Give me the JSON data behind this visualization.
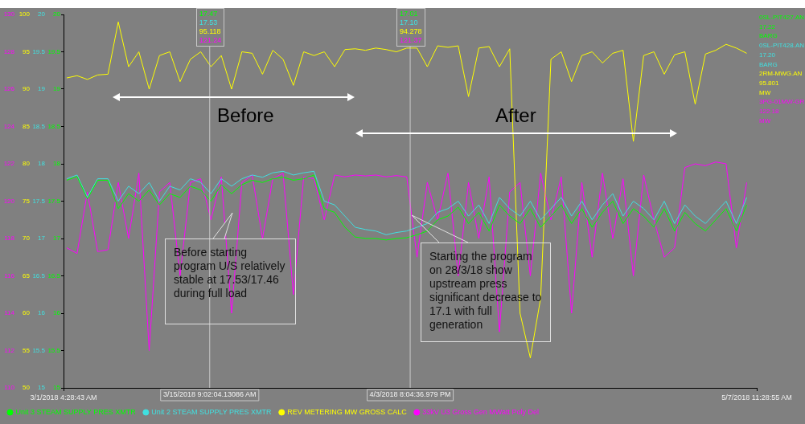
{
  "chart_data": {
    "type": "line",
    "x": [
      "2018-03-01T12:00",
      "2018-03-02T12:00",
      "2018-03-03T12:00",
      "2018-03-04T12:00",
      "2018-03-05T12:00",
      "2018-03-06T12:00",
      "2018-03-07T12:00",
      "2018-03-08T12:00",
      "2018-03-09T12:00",
      "2018-03-10T12:00",
      "2018-03-11T12:00",
      "2018-03-12T12:00",
      "2018-03-13T12:00",
      "2018-03-14T12:00",
      "2018-03-15T12:00",
      "2018-03-16T12:00",
      "2018-03-17T12:00",
      "2018-03-18T12:00",
      "2018-03-19T12:00",
      "2018-03-20T12:00",
      "2018-03-21T12:00",
      "2018-03-22T12:00",
      "2018-03-23T12:00",
      "2018-03-24T12:00",
      "2018-03-25T12:00",
      "2018-03-26T12:00",
      "2018-03-27T12:00",
      "2018-03-28T12:00",
      "2018-03-29T12:00",
      "2018-03-30T12:00",
      "2018-03-31T12:00",
      "2018-04-01T12:00",
      "2018-04-02T12:00",
      "2018-04-03T12:00",
      "2018-04-04T12:00",
      "2018-04-05T12:00",
      "2018-04-06T12:00",
      "2018-04-07T12:00",
      "2018-04-08T12:00",
      "2018-04-09T12:00",
      "2018-04-10T12:00",
      "2018-04-11T12:00",
      "2018-04-12T12:00",
      "2018-04-13T12:00",
      "2018-04-14T12:00",
      "2018-04-15T12:00",
      "2018-04-16T12:00",
      "2018-04-17T12:00",
      "2018-04-18T12:00",
      "2018-04-19T12:00",
      "2018-04-20T12:00",
      "2018-04-21T12:00",
      "2018-04-22T12:00",
      "2018-04-23T12:00",
      "2018-04-24T12:00",
      "2018-04-25T12:00",
      "2018-04-26T12:00",
      "2018-04-27T12:00",
      "2018-04-28T12:00",
      "2018-04-29T12:00",
      "2018-04-30T12:00",
      "2018-05-01T12:00",
      "2018-05-02T12:00",
      "2018-05-03T12:00",
      "2018-05-04T12:00",
      "2018-05-05T12:00",
      "2018-05-06T12:00"
    ],
    "series": [
      {
        "name": "Unit 3 STEAM SUPPLY PRES XMTR",
        "color": "#00ff00",
        "axis": "y3",
        "values": [
          17.78,
          17.83,
          17.53,
          17.78,
          17.78,
          17.4,
          17.6,
          17.5,
          17.65,
          17.45,
          17.6,
          17.55,
          17.7,
          17.65,
          17.5,
          17.72,
          17.6,
          17.72,
          17.78,
          17.75,
          17.8,
          17.82,
          17.78,
          17.8,
          17.85,
          17.4,
          17.35,
          17.15,
          17.02,
          17.0,
          17.0,
          16.98,
          17.0,
          17.01,
          17.05,
          17.1,
          17.25,
          17.3,
          17.42,
          17.2,
          17.35,
          17.1,
          17.45,
          17.3,
          17.2,
          17.4,
          17.15,
          17.3,
          17.45,
          17.2,
          17.4,
          17.15,
          17.35,
          17.5,
          17.2,
          17.4,
          17.3,
          17.15,
          17.4,
          17.1,
          17.35,
          17.2,
          17.1,
          17.25,
          17.4,
          17.1,
          17.45
        ]
      },
      {
        "name": "Unit 2 STEAM SUPPLY PRES XMTR",
        "color": "#40e0e0",
        "axis": "y3",
        "values": [
          17.8,
          17.85,
          17.55,
          17.8,
          17.8,
          17.5,
          17.7,
          17.6,
          17.75,
          17.5,
          17.7,
          17.65,
          17.8,
          17.75,
          17.6,
          17.8,
          17.7,
          17.8,
          17.85,
          17.82,
          17.88,
          17.9,
          17.85,
          17.88,
          17.9,
          17.5,
          17.45,
          17.3,
          17.15,
          17.12,
          17.1,
          17.05,
          17.08,
          17.1,
          17.15,
          17.2,
          17.35,
          17.4,
          17.5,
          17.3,
          17.45,
          17.2,
          17.55,
          17.4,
          17.3,
          17.5,
          17.25,
          17.4,
          17.55,
          17.3,
          17.5,
          17.25,
          17.45,
          17.6,
          17.3,
          17.5,
          17.4,
          17.25,
          17.5,
          17.2,
          17.45,
          17.3,
          17.2,
          17.35,
          17.5,
          17.2,
          17.55
        ]
      },
      {
        "name": "REV METERING MW GROSS CALC",
        "color": "#ffff00",
        "axis": "y2",
        "values": [
          91.5,
          91.8,
          91.3,
          91.9,
          92.0,
          99,
          93,
          95,
          90,
          94.5,
          95,
          91,
          94,
          95,
          93,
          94.5,
          90,
          95,
          94.8,
          92,
          95.2,
          94,
          90.5,
          95,
          94.5,
          95,
          93,
          95.3,
          95.4,
          95.2,
          95.5,
          95.3,
          95.0,
          95.5,
          95.5,
          93,
          95.8,
          95.6,
          95.8,
          89,
          95.5,
          95.7,
          93,
          95.4,
          60,
          54,
          62,
          94,
          95,
          91,
          94.5,
          95,
          93.5,
          94.8,
          95.2,
          83,
          94.5,
          95,
          92,
          94.6,
          95,
          88,
          94.7,
          95.2,
          96,
          95.5,
          94.8
        ]
      },
      {
        "name": "33kV U3 Gross Gen MWatt Poly Del",
        "color": "#ff00ff",
        "values": [
          117.5,
          117.2,
          120.5,
          117.3,
          117.4,
          121,
          118,
          121.5,
          112,
          120.5,
          121,
          116,
          121,
          121.2,
          119,
          121.3,
          114,
          121,
          121.4,
          118,
          121.2,
          121.5,
          115,
          121.3,
          121.2,
          119,
          121.4,
          121.3,
          121.4,
          121.35,
          121.4,
          121.3,
          121.37,
          121.3,
          117,
          121,
          119,
          121.5,
          116,
          121,
          118,
          121.3,
          113,
          120.5,
          121,
          116,
          121.5,
          119,
          121.3,
          114,
          121,
          117,
          121.5,
          118,
          121.2,
          116,
          121.4,
          119,
          117,
          117.5,
          121.8,
          122,
          121.9,
          122.1,
          122,
          117.5,
          121
        ]
      }
    ],
    "xlim": [
      "2018-03-01T04:28",
      "2018-05-07T11:28"
    ],
    "xticks": [
      {
        "value": "2018-03-01T04:28",
        "label": "3/1/2018 4:28:43 AM"
      },
      {
        "value": "2018-05-07T11:28",
        "label": "5/7/2018 11:28:55 AM"
      }
    ],
    "ylim": [
      110,
      130
    ],
    "yticks": [
      110,
      112,
      114,
      116,
      118,
      120,
      122,
      124,
      126,
      128,
      130
    ],
    "y2lim": [
      50,
      100
    ],
    "y2ticks": [
      50,
      55,
      60,
      65,
      70,
      75,
      80,
      85,
      90,
      95,
      100
    ],
    "y3lim": [
      15,
      20
    ],
    "y3ticks": [
      15,
      15.5,
      16,
      16.5,
      17,
      17.5,
      18,
      18.5,
      19,
      19.5,
      20
    ],
    "ref_lines": [
      {
        "axis": "x",
        "value": "2018-03-15T09:02",
        "label": "3/15/2018 9:02:04.13086 AM",
        "color": "#c8c8c8"
      },
      {
        "axis": "x",
        "value": "2018-04-03T20:04",
        "label": "4/3/2018 8:04:36.979 PM",
        "color": "#c8c8c8"
      }
    ],
    "legend": "bottom",
    "annotations": [
      "17.47",
      "17.53",
      "95.118",
      "121.24",
      "17.01",
      "17.10",
      "94.278",
      "121.37",
      "0SL-PIT427.AN",
      "17.22",
      "BARG",
      "0SL-PIT428.AN",
      "17.20",
      "BARG",
      "2RM-MWG.AN",
      "95.801",
      "MW",
      "3PG-01MW-GR",
      "122.18",
      "MW",
      "Before",
      "After",
      "Before starting program U/S relatively stable at 17.53/17.46 during full load",
      "Starting the program on 28/3/18 show upstream press significant decrease to 17.1 with full generation",
      "15",
      "15.5",
      "16",
      "16.5",
      "17",
      "17.5",
      "18",
      "18.5",
      "19",
      "19.5",
      "20"
    ]
  }
}
